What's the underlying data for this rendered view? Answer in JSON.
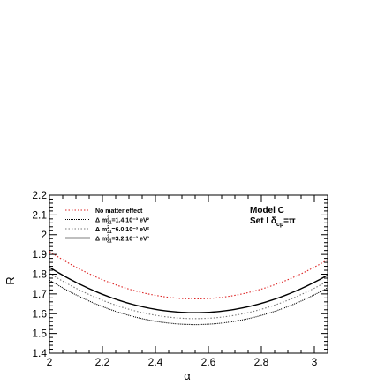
{
  "chart_data": {
    "type": "line",
    "xlabel": "α",
    "ylabel": "R",
    "xlim": [
      2.0,
      3.05
    ],
    "ylim": [
      1.4,
      2.2
    ],
    "grid": false,
    "legend_position": "top-left",
    "x_ticks": [
      2,
      2.2,
      2.4,
      2.6,
      2.8,
      3
    ],
    "x_tick_labels": [
      "2",
      "2.2",
      "2.4",
      "2.6",
      "2.8",
      "3"
    ],
    "y_ticks": [
      1.4,
      1.5,
      1.6,
      1.7,
      1.8,
      1.9,
      2.0,
      2.1,
      2.2
    ],
    "y_tick_labels": [
      "1.4",
      "1.5",
      "1.6",
      "1.7",
      "1.8",
      "1.9",
      "2",
      "2.1",
      "2.2"
    ],
    "annotations": [
      {
        "text": "Model C"
      },
      {
        "text": "Set I  δ",
        "sub": "cp",
        "tail": "=π"
      }
    ],
    "series": [
      {
        "name": "No matter effect",
        "label_main": "No matter effect",
        "label_sub": "",
        "label_sup": "",
        "label_tail": "",
        "style": "dotted",
        "color": "#dd2222",
        "x_min": 2.55,
        "y_min": 1.675,
        "y_at_2": 1.915,
        "y_at_3": 1.915
      },
      {
        "name": "Δ m²₃₁=1.4 10⁻³ eV²",
        "label_main": "Δ m",
        "label_sub": "31",
        "label_sup": "2",
        "label_tail": "=1.4 10⁻³ eV²",
        "style": "densedot",
        "color": "#000000",
        "x_min": 2.55,
        "y_min": 1.545,
        "y_at_2": 1.77,
        "y_at_3": 1.77
      },
      {
        "name": "Δ m²₃₁=6.0 10⁻³ eV²",
        "label_main": "Δ m",
        "label_sub": "31",
        "label_sup": "2",
        "label_tail": "=6.0 10⁻³ eV²",
        "style": "dotted",
        "color": "#777777",
        "x_min": 2.55,
        "y_min": 1.575,
        "y_at_2": 1.805,
        "y_at_3": 1.805
      },
      {
        "name": "Δ m²₃₁=3.2 10⁻³ eV²",
        "label_main": "Δ m",
        "label_sub": "31",
        "label_sup": "2",
        "label_tail": "=3.2 10⁻³ eV²",
        "style": "solid",
        "color": "#000000",
        "x_min": 2.55,
        "y_min": 1.605,
        "y_at_2": 1.835,
        "y_at_3": 1.835
      }
    ]
  }
}
